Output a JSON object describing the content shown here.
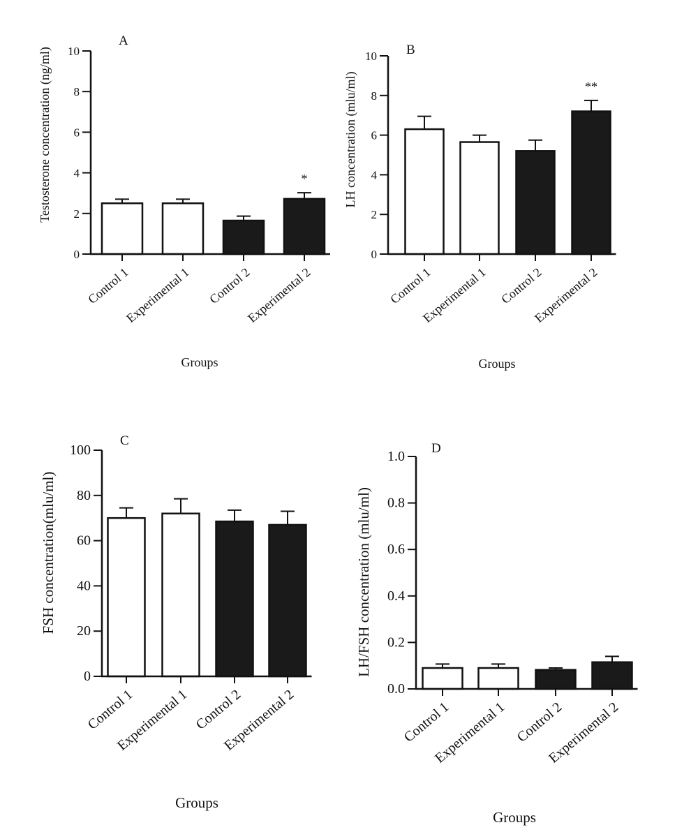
{
  "chart_data": [
    {
      "type": "bar",
      "panel": "A",
      "categories": [
        "Control 1",
        "Experimental 1",
        "Control 2",
        "Experimental 2"
      ],
      "values": [
        2.5,
        2.5,
        1.65,
        2.72
      ],
      "errors": [
        0.2,
        0.2,
        0.22,
        0.3
      ],
      "fills": [
        "#ffffff",
        "#ffffff",
        "#1a1a1a",
        "#1a1a1a"
      ],
      "significance": [
        "",
        "",
        "",
        "*"
      ],
      "ylabel": "Testosterone concentration (ng/ml)",
      "xlabel": "Groups",
      "ylim": [
        0,
        10
      ],
      "yticks": [
        0,
        2,
        4,
        6,
        8,
        10
      ],
      "ytick_labels": [
        "0",
        "2",
        "4",
        "6",
        "8",
        "10"
      ]
    },
    {
      "type": "bar",
      "panel": "B",
      "categories": [
        "Control 1",
        "Experimental 1",
        "Control 2",
        "Experimental 2"
      ],
      "values": [
        6.3,
        5.65,
        5.2,
        7.2
      ],
      "errors": [
        0.65,
        0.35,
        0.55,
        0.55
      ],
      "fills": [
        "#ffffff",
        "#ffffff",
        "#1a1a1a",
        "#1a1a1a"
      ],
      "significance": [
        "",
        "",
        "",
        "**"
      ],
      "ylabel": "LH concentration (mlu/ml)",
      "xlabel": "Groups",
      "ylim": [
        0,
        10
      ],
      "yticks": [
        0,
        2,
        4,
        6,
        8,
        10
      ],
      "ytick_labels": [
        "0",
        "2",
        "4",
        "6",
        "8",
        "10"
      ]
    },
    {
      "type": "bar",
      "panel": "C",
      "categories": [
        "Control 1",
        "Experimental 1",
        "Control 2",
        "Experimental 2"
      ],
      "values": [
        70,
        72,
        68.5,
        67
      ],
      "errors": [
        4.5,
        6.5,
        5,
        6
      ],
      "fills": [
        "#ffffff",
        "#ffffff",
        "#1a1a1a",
        "#1a1a1a"
      ],
      "significance": [
        "",
        "",
        "",
        ""
      ],
      "ylabel": "FSH concentration(mlu/ml)",
      "xlabel": "Groups",
      "ylim": [
        0,
        100
      ],
      "yticks": [
        0,
        20,
        40,
        60,
        80,
        100
      ],
      "ytick_labels": [
        "0",
        "20",
        "40",
        "60",
        "80",
        "100"
      ]
    },
    {
      "type": "bar",
      "panel": "D",
      "categories": [
        "Control 1",
        "Experimental 1",
        "Control 2",
        "Experimental 2"
      ],
      "values": [
        0.09,
        0.09,
        0.082,
        0.115
      ],
      "errors": [
        0.017,
        0.017,
        0.008,
        0.025
      ],
      "fills": [
        "#ffffff",
        "#ffffff",
        "#1a1a1a",
        "#1a1a1a"
      ],
      "significance": [
        "",
        "",
        "",
        ""
      ],
      "ylabel": "LH/FSH concentration (mlu/ml)",
      "xlabel": "Groups",
      "ylim": [
        0,
        1.0
      ],
      "yticks": [
        0,
        0.2,
        0.4,
        0.6,
        0.8,
        1.0
      ],
      "ytick_labels": [
        "0.0",
        "0.2",
        "0.4",
        "0.6",
        "0.8",
        "1.0"
      ]
    }
  ]
}
